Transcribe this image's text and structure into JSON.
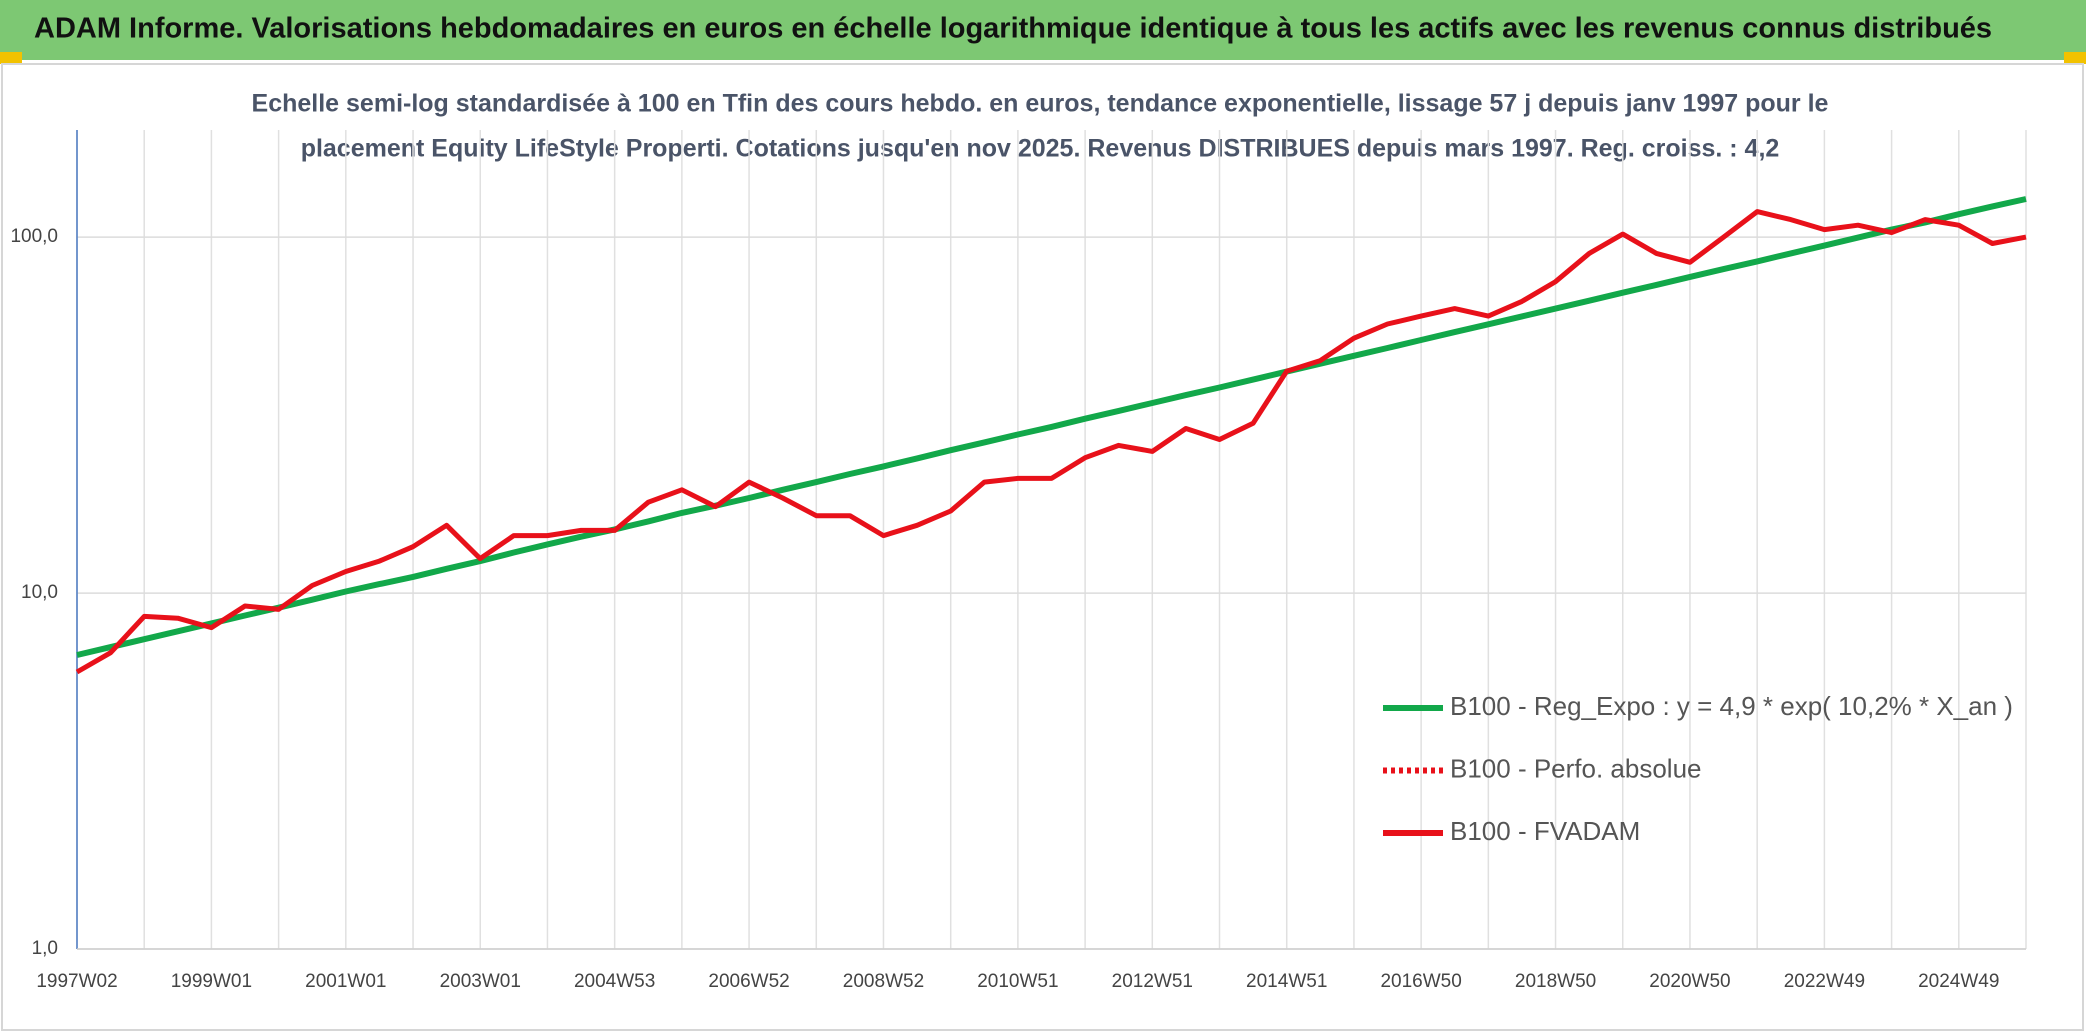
{
  "header": {
    "title": "ADAM Informe. Valorisations hebdomadaires en euros en échelle logarithmique identique à tous les actifs avec les revenus connus distribués"
  },
  "chart_data": {
    "type": "line",
    "subtitle": [
      "Echelle semi-log standardisée à 100 en Tfin des cours hebdo. en euros, tendance exponentielle, lissage 57 j depuis janv 1997 pour le",
      "placement Equity LifeStyle Properti. Cotations jusqu'en nov 2025. Revenus DISTRIBUES depuis mars 1997. Reg. croiss. : 4,2"
    ],
    "log_scale": true,
    "grid": true,
    "ylim": [
      1,
      200
    ],
    "yticks": [
      {
        "value": 1,
        "label": "1,0"
      },
      {
        "value": 10,
        "label": "10,0"
      },
      {
        "value": 100,
        "label": "100,0"
      }
    ],
    "categories": [
      "1997W02",
      null,
      null,
      null,
      "1999W01",
      null,
      null,
      null,
      "2001W01",
      null,
      null,
      null,
      "2003W01",
      null,
      null,
      null,
      "2004W53",
      null,
      null,
      null,
      "2006W52",
      null,
      null,
      null,
      "2008W52",
      null,
      null,
      null,
      "2010W51",
      null,
      null,
      null,
      "2012W51",
      null,
      null,
      null,
      "2014W51",
      null,
      null,
      null,
      "2016W50",
      null,
      null,
      null,
      "2018W50",
      null,
      null,
      null,
      "2020W50",
      null,
      null,
      null,
      "2022W49",
      null,
      null,
      null,
      "2024W49",
      null,
      null
    ],
    "series": [
      {
        "name": "B100 - Reg_Expo : y = 4,9 * exp( 10,2% *  X_an )",
        "color": "#12a84a",
        "style": "solid",
        "values": [
          6.7,
          7.05,
          7.42,
          7.81,
          8.22,
          8.65,
          9.1,
          9.58,
          10.1,
          10.6,
          11.1,
          11.7,
          12.3,
          13.0,
          13.7,
          14.4,
          15.1,
          15.9,
          16.8,
          17.6,
          18.5,
          19.5,
          20.5,
          21.6,
          22.7,
          23.9,
          25.2,
          26.5,
          27.9,
          29.3,
          30.9,
          32.5,
          34.2,
          36.0,
          37.8,
          39.8,
          41.9,
          44.1,
          46.4,
          48.8,
          51.4,
          54.1,
          56.9,
          59.9,
          63.0,
          66.3,
          69.8,
          73.4,
          77.3,
          81.3,
          85.5,
          90.0,
          94.7,
          99.7,
          105,
          110,
          116,
          122,
          128
        ]
      },
      {
        "name": "B100 - Perfo. absolue",
        "color": "#e8111a",
        "style": "dotted",
        "values": [
          null,
          null,
          null,
          null,
          null,
          null,
          null,
          null,
          null,
          null,
          null,
          null,
          null,
          null,
          null,
          null,
          null,
          null,
          null,
          null,
          null,
          null,
          null,
          null,
          null,
          null,
          null,
          null,
          null,
          null,
          null,
          null,
          null,
          null,
          null,
          null,
          null,
          null,
          null,
          null,
          null,
          null,
          null,
          null,
          null,
          null,
          null,
          null,
          null,
          null,
          null,
          null,
          null,
          null,
          null,
          null,
          null,
          null,
          null
        ]
      },
      {
        "name": "B100 - FVADAM",
        "color": "#e8111a",
        "style": "solid",
        "values": [
          6.0,
          6.8,
          8.6,
          8.5,
          8.0,
          9.2,
          9.0,
          10.5,
          11.5,
          12.3,
          13.5,
          15.5,
          12.5,
          14.5,
          14.5,
          15.0,
          15.0,
          18.0,
          19.5,
          17.5,
          20.5,
          18.5,
          16.5,
          16.5,
          14.5,
          15.5,
          17.0,
          20.5,
          21.0,
          21.0,
          24.0,
          26.0,
          25.0,
          29.0,
          27.0,
          30.0,
          42.0,
          45.0,
          52.0,
          57.0,
          60.0,
          63.0,
          60.0,
          66.0,
          75.0,
          90.0,
          102.0,
          90.0,
          85.0,
          100.0,
          118.0,
          112.0,
          105.0,
          108.0,
          103.0,
          112.0,
          108.0,
          96.0,
          100.0
        ]
      }
    ]
  }
}
